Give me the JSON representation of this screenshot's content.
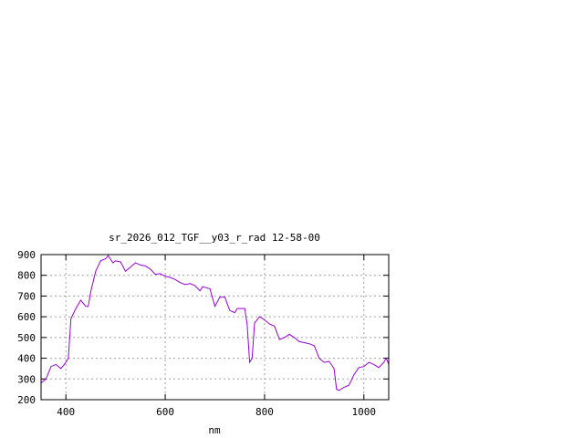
{
  "chart_data": {
    "type": "line",
    "title": "sr_2026_012_TGF__y03_r_rad 12-58-00",
    "xlabel": "nm",
    "ylabel": "",
    "xlim": [
      350,
      1050
    ],
    "ylim": [
      200,
      900
    ],
    "xticks": [
      400,
      600,
      800,
      1000
    ],
    "yticks": [
      200,
      300,
      400,
      500,
      600,
      700,
      800,
      900
    ],
    "grid": true,
    "line_color": "#9400d3",
    "series": [
      {
        "x": [
          350,
          360,
          370,
          380,
          390,
          400,
          405,
          410,
          420,
          430,
          440,
          445,
          450,
          460,
          470,
          480,
          485,
          495,
          500,
          510,
          520,
          530,
          540,
          550,
          560,
          570,
          580,
          590,
          600,
          610,
          620,
          630,
          640,
          650,
          660,
          670,
          675,
          690,
          700,
          710,
          720,
          730,
          740,
          745,
          760,
          765,
          770,
          775,
          780,
          790,
          800,
          810,
          820,
          830,
          840,
          850,
          860,
          870,
          880,
          890,
          900,
          910,
          920,
          930,
          940,
          945,
          950,
          960,
          970,
          980,
          990,
          1000,
          1010,
          1020,
          1030,
          1040,
          1045,
          1050
        ],
        "y": [
          280,
          300,
          360,
          370,
          350,
          380,
          400,
          590,
          640,
          680,
          650,
          650,
          720,
          820,
          870,
          880,
          895,
          860,
          870,
          865,
          820,
          840,
          860,
          850,
          845,
          830,
          805,
          808,
          795,
          790,
          780,
          765,
          755,
          760,
          750,
          725,
          745,
          735,
          650,
          695,
          695,
          630,
          620,
          640,
          640,
          560,
          380,
          400,
          570,
          600,
          585,
          565,
          555,
          490,
          500,
          515,
          500,
          480,
          475,
          470,
          460,
          400,
          380,
          385,
          350,
          250,
          245,
          260,
          270,
          320,
          355,
          360,
          380,
          370,
          355,
          380,
          400,
          370
        ]
      }
    ]
  }
}
